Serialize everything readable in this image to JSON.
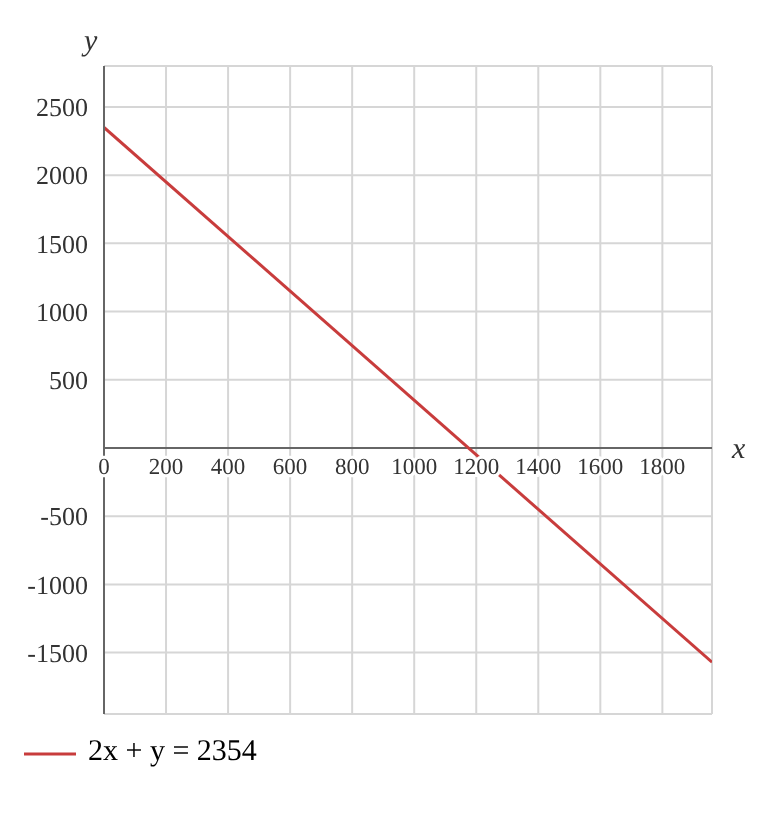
{
  "chart_data": {
    "type": "line",
    "xlabel": "x",
    "ylabel": "y",
    "x": [
      0,
      1960
    ],
    "series": [
      {
        "name": "2x + y = 2354",
        "color": "#c83c3c",
        "values": [
          2350,
          -1570
        ]
      }
    ],
    "xlim": [
      0,
      1960
    ],
    "ylim": [
      -1950,
      2800
    ],
    "xticks": [
      0,
      200,
      400,
      600,
      800,
      1000,
      1200,
      1400,
      1600,
      1800
    ],
    "yticks": [
      -1500,
      -1000,
      -500,
      500,
      1000,
      1500,
      2000,
      2500
    ],
    "grid": true,
    "legend": "bottom left",
    "marker": "none",
    "line_style": "solid"
  }
}
